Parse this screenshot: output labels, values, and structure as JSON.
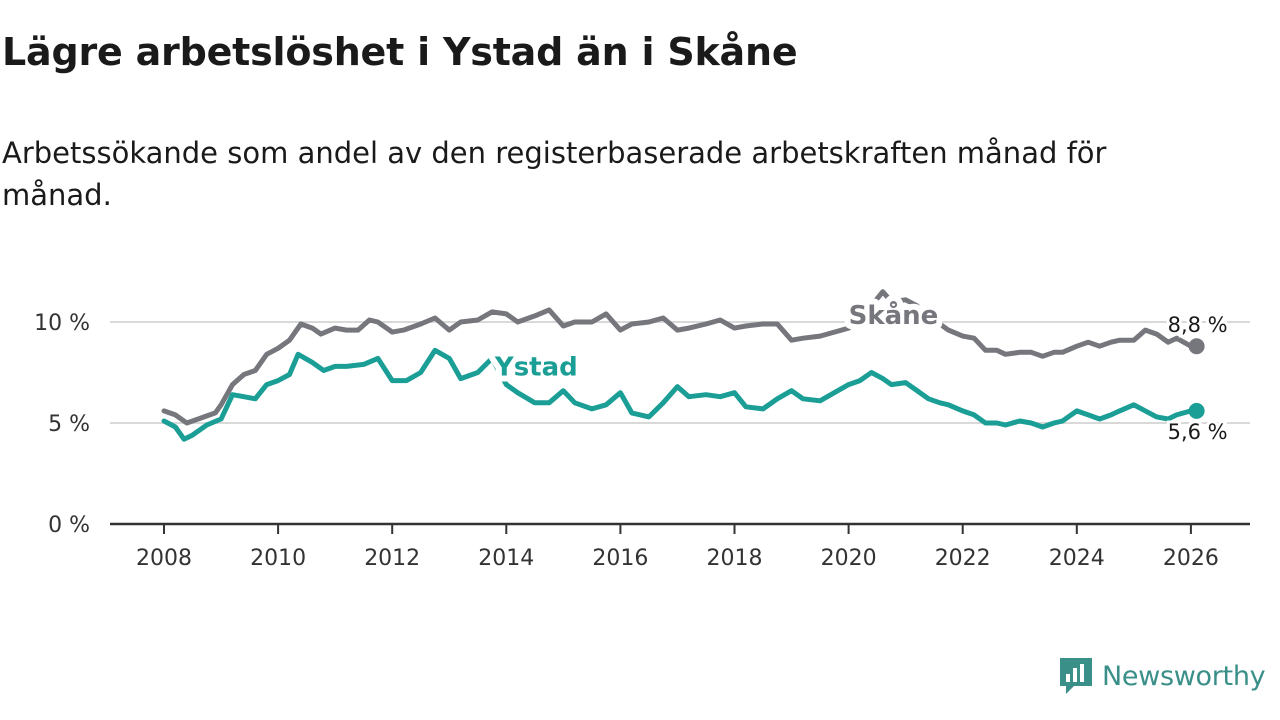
{
  "title": "Lägre arbetslöshet i Ystad än i Skåne",
  "subtitle": "Arbetssökande som andel av den registerbaserade arbetskraften månad för månad.",
  "brand": {
    "name": "Newsworthy",
    "icon": "newsworthy-logo-icon",
    "color": "#3a8f88"
  },
  "chart_data": {
    "type": "line",
    "title": "Lägre arbetslöshet i Ystad än i Skåne",
    "xlabel": "",
    "ylabel": "",
    "xlim": [
      2007.6,
      2027.0
    ],
    "ylim": [
      0,
      10
    ],
    "grid": true,
    "y_ticks": [
      {
        "value": 0,
        "label": "0 %"
      },
      {
        "value": 5,
        "label": "5 %"
      },
      {
        "value": 10,
        "label": "10 %"
      }
    ],
    "x_ticks": [
      {
        "value": 2008,
        "label": "2008"
      },
      {
        "value": 2010,
        "label": "2010"
      },
      {
        "value": 2012,
        "label": "2012"
      },
      {
        "value": 2014,
        "label": "2014"
      },
      {
        "value": 2016,
        "label": "2016"
      },
      {
        "value": 2018,
        "label": "2018"
      },
      {
        "value": 2020,
        "label": "2020"
      },
      {
        "value": 2022,
        "label": "2022"
      },
      {
        "value": 2024,
        "label": "2024"
      },
      {
        "value": 2026,
        "label": "2026"
      }
    ],
    "series": [
      {
        "name": "Skåne",
        "color": "#76767d",
        "end_label": "8,8 %",
        "label_at": [
          2020.0,
          9.9
        ],
        "points": [
          [
            2008.0,
            5.6
          ],
          [
            2008.2,
            5.4
          ],
          [
            2008.4,
            5.0
          ],
          [
            2008.6,
            5.2
          ],
          [
            2008.9,
            5.5
          ],
          [
            2009.0,
            5.9
          ],
          [
            2009.2,
            6.9
          ],
          [
            2009.4,
            7.4
          ],
          [
            2009.6,
            7.6
          ],
          [
            2009.8,
            8.4
          ],
          [
            2010.0,
            8.7
          ],
          [
            2010.2,
            9.1
          ],
          [
            2010.4,
            9.9
          ],
          [
            2010.6,
            9.7
          ],
          [
            2010.75,
            9.4
          ],
          [
            2011.0,
            9.7
          ],
          [
            2011.2,
            9.6
          ],
          [
            2011.4,
            9.6
          ],
          [
            2011.6,
            10.1
          ],
          [
            2011.75,
            10.0
          ],
          [
            2012.0,
            9.5
          ],
          [
            2012.2,
            9.6
          ],
          [
            2012.5,
            9.9
          ],
          [
            2012.75,
            10.2
          ],
          [
            2013.0,
            9.6
          ],
          [
            2013.2,
            10.0
          ],
          [
            2013.5,
            10.1
          ],
          [
            2013.75,
            10.5
          ],
          [
            2014.0,
            10.4
          ],
          [
            2014.2,
            10.0
          ],
          [
            2014.5,
            10.3
          ],
          [
            2014.75,
            10.6
          ],
          [
            2015.0,
            9.8
          ],
          [
            2015.2,
            10.0
          ],
          [
            2015.5,
            10.0
          ],
          [
            2015.75,
            10.4
          ],
          [
            2016.0,
            9.6
          ],
          [
            2016.2,
            9.9
          ],
          [
            2016.5,
            10.0
          ],
          [
            2016.75,
            10.2
          ],
          [
            2017.0,
            9.6
          ],
          [
            2017.2,
            9.7
          ],
          [
            2017.5,
            9.9
          ],
          [
            2017.75,
            10.1
          ],
          [
            2018.0,
            9.7
          ],
          [
            2018.2,
            9.8
          ],
          [
            2018.5,
            9.9
          ],
          [
            2018.75,
            9.9
          ],
          [
            2019.0,
            9.1
          ],
          [
            2019.2,
            9.2
          ],
          [
            2019.5,
            9.3
          ],
          [
            2019.75,
            9.5
          ],
          [
            2020.0,
            9.7
          ],
          [
            2020.2,
            10.0
          ],
          [
            2020.4,
            10.8
          ],
          [
            2020.6,
            11.5
          ],
          [
            2020.75,
            11.0
          ],
          [
            2021.0,
            11.1
          ],
          [
            2021.2,
            10.8
          ],
          [
            2021.4,
            10.0
          ],
          [
            2021.6,
            9.9
          ],
          [
            2021.75,
            9.6
          ],
          [
            2022.0,
            9.3
          ],
          [
            2022.2,
            9.2
          ],
          [
            2022.4,
            8.6
          ],
          [
            2022.6,
            8.6
          ],
          [
            2022.75,
            8.4
          ],
          [
            2023.0,
            8.5
          ],
          [
            2023.2,
            8.5
          ],
          [
            2023.4,
            8.3
          ],
          [
            2023.6,
            8.5
          ],
          [
            2023.75,
            8.5
          ],
          [
            2024.0,
            8.8
          ],
          [
            2024.2,
            9.0
          ],
          [
            2024.4,
            8.8
          ],
          [
            2024.6,
            9.0
          ],
          [
            2024.75,
            9.1
          ],
          [
            2025.0,
            9.1
          ],
          [
            2025.2,
            9.6
          ],
          [
            2025.4,
            9.4
          ],
          [
            2025.6,
            9.0
          ],
          [
            2025.75,
            9.2
          ],
          [
            2026.0,
            8.8
          ],
          [
            2026.1,
            8.8
          ]
        ]
      },
      {
        "name": "Ystad",
        "color": "#1a9e96",
        "end_label": "5,6 %",
        "label_at": [
          2013.8,
          7.35
        ],
        "points": [
          [
            2008.0,
            5.1
          ],
          [
            2008.2,
            4.8
          ],
          [
            2008.35,
            4.2
          ],
          [
            2008.5,
            4.4
          ],
          [
            2008.75,
            4.9
          ],
          [
            2009.0,
            5.2
          ],
          [
            2009.2,
            6.4
          ],
          [
            2009.4,
            6.3
          ],
          [
            2009.6,
            6.2
          ],
          [
            2009.8,
            6.9
          ],
          [
            2010.0,
            7.1
          ],
          [
            2010.2,
            7.4
          ],
          [
            2010.35,
            8.4
          ],
          [
            2010.6,
            8.0
          ],
          [
            2010.8,
            7.6
          ],
          [
            2011.0,
            7.8
          ],
          [
            2011.2,
            7.8
          ],
          [
            2011.5,
            7.9
          ],
          [
            2011.75,
            8.2
          ],
          [
            2012.0,
            7.1
          ],
          [
            2012.25,
            7.1
          ],
          [
            2012.5,
            7.5
          ],
          [
            2012.75,
            8.6
          ],
          [
            2013.0,
            8.2
          ],
          [
            2013.2,
            7.2
          ],
          [
            2013.5,
            7.5
          ],
          [
            2013.75,
            8.2
          ],
          [
            2014.0,
            6.9
          ],
          [
            2014.2,
            6.5
          ],
          [
            2014.5,
            6.0
          ],
          [
            2014.75,
            6.0
          ],
          [
            2015.0,
            6.6
          ],
          [
            2015.2,
            6.0
          ],
          [
            2015.5,
            5.7
          ],
          [
            2015.75,
            5.9
          ],
          [
            2016.0,
            6.5
          ],
          [
            2016.2,
            5.5
          ],
          [
            2016.5,
            5.3
          ],
          [
            2016.75,
            6.0
          ],
          [
            2017.0,
            6.8
          ],
          [
            2017.2,
            6.3
          ],
          [
            2017.5,
            6.4
          ],
          [
            2017.75,
            6.3
          ],
          [
            2018.0,
            6.5
          ],
          [
            2018.2,
            5.8
          ],
          [
            2018.5,
            5.7
          ],
          [
            2018.75,
            6.2
          ],
          [
            2019.0,
            6.6
          ],
          [
            2019.2,
            6.2
          ],
          [
            2019.5,
            6.1
          ],
          [
            2019.75,
            6.5
          ],
          [
            2020.0,
            6.9
          ],
          [
            2020.2,
            7.1
          ],
          [
            2020.4,
            7.5
          ],
          [
            2020.6,
            7.2
          ],
          [
            2020.75,
            6.9
          ],
          [
            2021.0,
            7.0
          ],
          [
            2021.2,
            6.6
          ],
          [
            2021.4,
            6.2
          ],
          [
            2021.6,
            6.0
          ],
          [
            2021.75,
            5.9
          ],
          [
            2022.0,
            5.6
          ],
          [
            2022.2,
            5.4
          ],
          [
            2022.4,
            5.0
          ],
          [
            2022.6,
            5.0
          ],
          [
            2022.75,
            4.9
          ],
          [
            2023.0,
            5.1
          ],
          [
            2023.2,
            5.0
          ],
          [
            2023.4,
            4.8
          ],
          [
            2023.6,
            5.0
          ],
          [
            2023.75,
            5.1
          ],
          [
            2024.0,
            5.6
          ],
          [
            2024.2,
            5.4
          ],
          [
            2024.4,
            5.2
          ],
          [
            2024.6,
            5.4
          ],
          [
            2024.75,
            5.6
          ],
          [
            2025.0,
            5.9
          ],
          [
            2025.2,
            5.6
          ],
          [
            2025.4,
            5.3
          ],
          [
            2025.6,
            5.2
          ],
          [
            2025.75,
            5.4
          ],
          [
            2026.0,
            5.6
          ],
          [
            2026.1,
            5.6
          ]
        ]
      }
    ]
  }
}
